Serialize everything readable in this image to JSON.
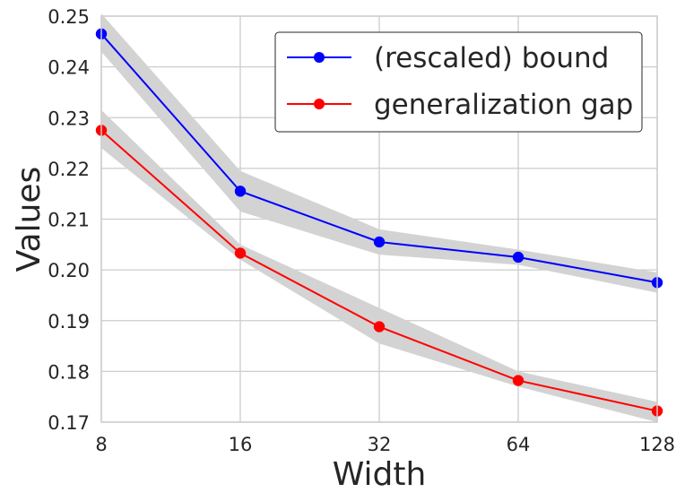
{
  "chart_data": {
    "type": "line",
    "title": "",
    "xlabel": "Width",
    "ylabel": "Values",
    "x": [
      8,
      16,
      32,
      64,
      128
    ],
    "x_tick_labels": [
      "8",
      "16",
      "32",
      "64",
      "128"
    ],
    "xscale": "log2",
    "ylim": [
      0.17,
      0.25
    ],
    "y_ticks": [
      0.17,
      0.18,
      0.19,
      0.2,
      0.21,
      0.22,
      0.23,
      0.24,
      0.25
    ],
    "y_tick_labels": [
      "0.17",
      "0.18",
      "0.19",
      "0.20",
      "0.21",
      "0.22",
      "0.23",
      "0.24",
      "0.25"
    ],
    "grid": true,
    "legend_position": "top-right",
    "series": [
      {
        "name": "(rescaled) bound",
        "color": "#0000ff",
        "values": [
          0.2465,
          0.2155,
          0.2055,
          0.2025,
          0.1975
        ],
        "band_low": [
          0.243,
          0.2115,
          0.203,
          0.201,
          0.1955
        ],
        "band_high": [
          0.2505,
          0.2195,
          0.208,
          0.204,
          0.1995
        ]
      },
      {
        "name": "generalization gap",
        "color": "#ff0000",
        "values": [
          0.2275,
          0.2033,
          0.1888,
          0.1782,
          0.1722
        ],
        "band_low": [
          0.224,
          0.202,
          0.1855,
          0.177,
          0.17
        ],
        "band_high": [
          0.2315,
          0.205,
          0.1925,
          0.18,
          0.174
        ]
      }
    ],
    "band_color": "#d3d3d3"
  }
}
